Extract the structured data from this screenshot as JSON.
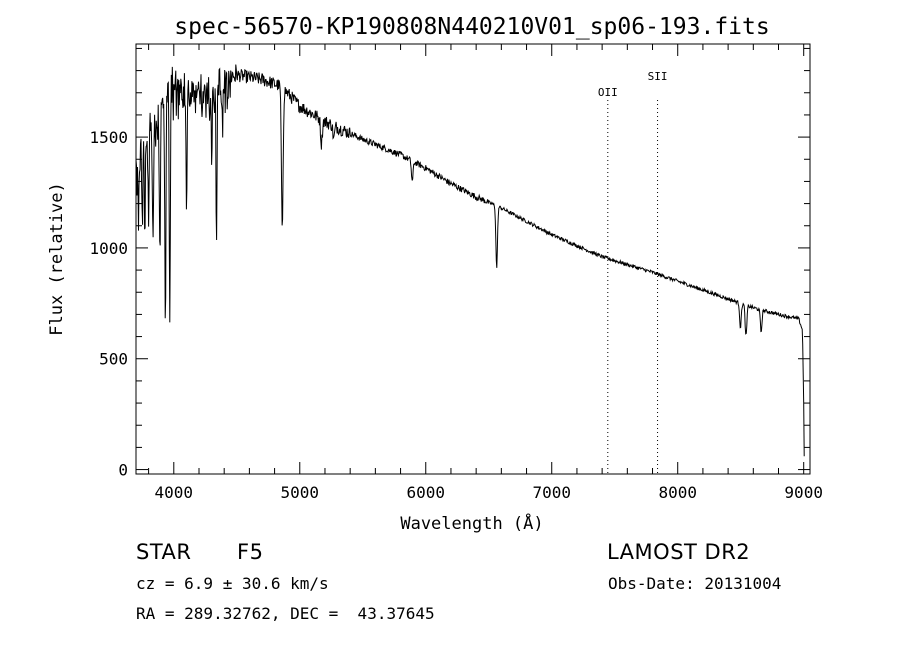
{
  "chart_data": {
    "type": "line",
    "title": "spec-56570-KP190808N440210V01_sp06-193.fits",
    "xlabel": "Wavelength (Å)",
    "ylabel": "Flux (relative)",
    "xlim": [
      3700,
      9050
    ],
    "ylim": [
      -20,
      1920
    ],
    "x_ticks": [
      4000,
      5000,
      6000,
      7000,
      8000,
      9000
    ],
    "x_tick_labels": [
      "4000",
      "5000",
      "6000",
      "7000",
      "8000",
      "9000"
    ],
    "y_ticks": [
      0,
      500,
      1000,
      1500
    ],
    "y_tick_labels": [
      "0",
      "500",
      "1000",
      "1500"
    ],
    "grid": false,
    "series": [
      {
        "name": "spectrum",
        "continuum": [
          [
            3700,
            1430
          ],
          [
            3800,
            1560
          ],
          [
            3900,
            1680
          ],
          [
            4000,
            1780
          ],
          [
            4100,
            1760
          ],
          [
            4300,
            1770
          ],
          [
            4500,
            1780
          ],
          [
            4700,
            1760
          ],
          [
            4850,
            1730
          ],
          [
            5000,
            1640
          ],
          [
            5200,
            1570
          ],
          [
            5500,
            1490
          ],
          [
            5800,
            1420
          ],
          [
            6000,
            1360
          ],
          [
            6200,
            1290
          ],
          [
            6400,
            1230
          ],
          [
            6600,
            1180
          ],
          [
            6800,
            1120
          ],
          [
            7000,
            1060
          ],
          [
            7200,
            1010
          ],
          [
            7400,
            960
          ],
          [
            7600,
            925
          ],
          [
            7800,
            890
          ],
          [
            8000,
            850
          ],
          [
            8200,
            810
          ],
          [
            8400,
            770
          ],
          [
            8600,
            730
          ],
          [
            8800,
            700
          ],
          [
            8960,
            680
          ],
          [
            8990,
            630
          ],
          [
            9000,
            300
          ],
          [
            9005,
            0
          ]
        ],
        "absorption_lines": [
          {
            "x": 3720,
            "y": 1150
          },
          {
            "x": 3750,
            "y": 1200
          },
          {
            "x": 3770,
            "y": 1100
          },
          {
            "x": 3800,
            "y": 1150
          },
          {
            "x": 3835,
            "y": 1100
          },
          {
            "x": 3889,
            "y": 1050
          },
          {
            "x": 3933,
            "y": 730
          },
          {
            "x": 3968,
            "y": 730
          },
          {
            "x": 4101,
            "y": 1190
          },
          {
            "x": 4226,
            "y": 1580
          },
          {
            "x": 4300,
            "y": 1450
          },
          {
            "x": 4340,
            "y": 1100
          },
          {
            "x": 4383,
            "y": 1640
          },
          {
            "x": 4861,
            "y": 1070
          },
          {
            "x": 5172,
            "y": 1470
          },
          {
            "x": 5270,
            "y": 1490
          },
          {
            "x": 5893,
            "y": 1300
          },
          {
            "x": 6563,
            "y": 910
          },
          {
            "x": 8498,
            "y": 640
          },
          {
            "x": 8542,
            "y": 600
          },
          {
            "x": 8662,
            "y": 620
          }
        ]
      }
    ],
    "annotations": [
      {
        "label": "OII",
        "x": 7445
      },
      {
        "label": "SII",
        "x": 7840
      }
    ]
  },
  "info": {
    "object_class": "STAR",
    "subclass": "F5",
    "survey": "LAMOST DR2",
    "redshift_line": "cz = 6.9 ± 30.6 km/s",
    "obs_date_line": "Obs-Date: 20131004",
    "coords_line": "RA = 289.32762, DEC =  43.37645"
  },
  "colors": {
    "line": "#000000",
    "background": "#ffffff"
  }
}
